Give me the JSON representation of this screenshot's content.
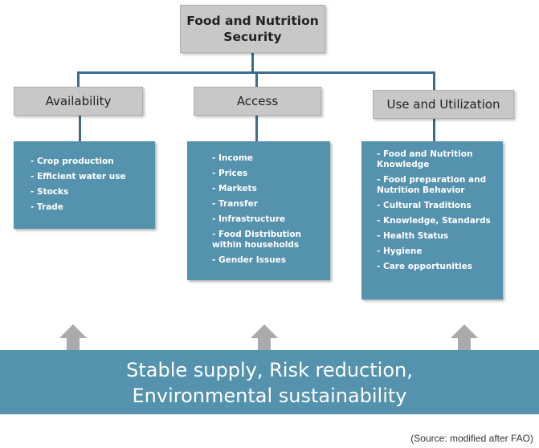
{
  "top": {
    "line1": "Food and Nutrition",
    "line2": "Security"
  },
  "categories": [
    {
      "label": "Availability",
      "items": [
        "- Crop production",
        "- Efficient water use",
        "- Stocks",
        "- Trade"
      ]
    },
    {
      "label": "Access",
      "items": [
        "- Income",
        "- Prices",
        "- Markets",
        "- Transfer",
        "- Infrastructure",
        "- Food Distribution within households",
        "- Gender Issues"
      ]
    },
    {
      "label": "Use and Utilization",
      "items": [
        "- Food and Nutrition Knowledge",
        "- Food preparation and Nutrition Behavior",
        "- Cultural Traditions",
        "- Knowledge, Standards",
        "- Health Status",
        "- Hygiene",
        "- Care opportunities"
      ]
    }
  ],
  "bottom": {
    "line1": "Stable supply, Risk reduction,",
    "line2": "Environmental sustainability"
  },
  "source": "(Source: modified after FAO)",
  "colors": {
    "box_gray": "#c8c8c8",
    "box_blue": "#5592ad",
    "connector": "#3d6c90",
    "arrow": "#aaaaaa"
  }
}
